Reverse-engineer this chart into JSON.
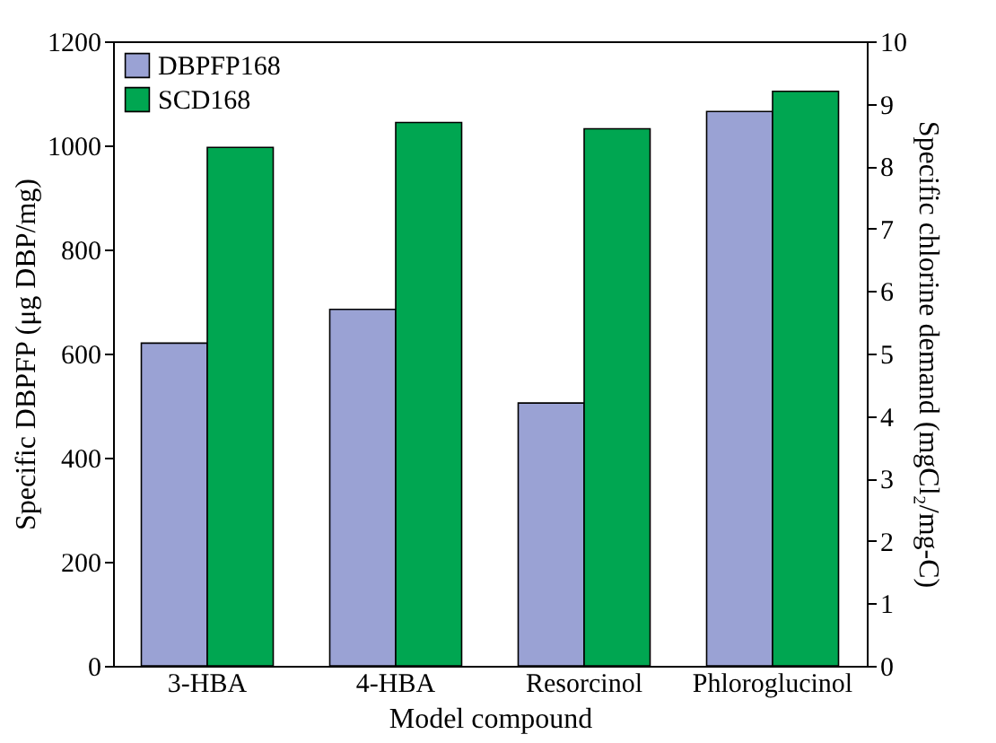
{
  "chart_data": {
    "type": "bar",
    "xlabel": "Model compound",
    "ylabel": "Specific DBPFP (μg DBP/mg)",
    "y2label": "Specific chlorine demand (mgCl₂/mg-C)",
    "categories": [
      "3-HBA",
      "4-HBA",
      "Resorcinol",
      "Phloroglucinol"
    ],
    "series": [
      {
        "name": "DBPFP168",
        "color": "#9aa2d4",
        "values": [
          620,
          685,
          505,
          1065
        ]
      },
      {
        "name": "SCD168",
        "color": "#00a651",
        "values": [
          8.3,
          8.7,
          8.6,
          9.2
        ],
        "axis": "y2"
      }
    ],
    "ylim": [
      0,
      1200
    ],
    "yticks": [
      0,
      200,
      400,
      600,
      800,
      1000,
      1200
    ],
    "y2lim": [
      0,
      10
    ],
    "y2ticks": [
      0,
      1,
      2,
      3,
      4,
      5,
      6,
      7,
      8,
      9,
      10
    ],
    "legend": "top left",
    "grid": false
  }
}
